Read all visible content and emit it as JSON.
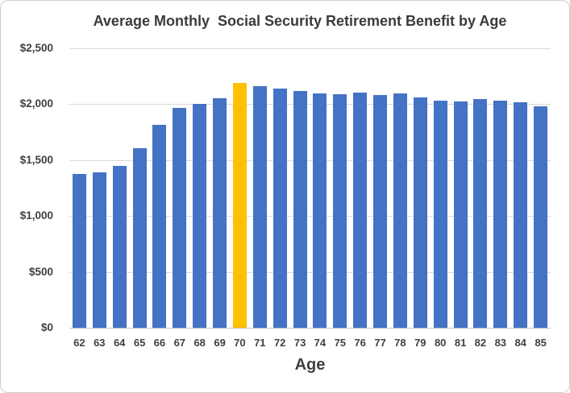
{
  "chart_data": {
    "type": "bar",
    "title": "Average Monthly  Social Security Retirement Benefit by Age",
    "xlabel": "Age",
    "ylabel": "",
    "categories": [
      "62",
      "63",
      "64",
      "65",
      "66",
      "67",
      "68",
      "69",
      "70",
      "71",
      "72",
      "73",
      "74",
      "75",
      "76",
      "77",
      "78",
      "79",
      "80",
      "81",
      "82",
      "83",
      "84",
      "85"
    ],
    "values": [
      1375,
      1390,
      1445,
      1610,
      1815,
      1965,
      2005,
      2055,
      2190,
      2160,
      2140,
      2120,
      2095,
      2090,
      2105,
      2080,
      2095,
      2060,
      2035,
      2025,
      2050,
      2030,
      2015,
      1980
    ],
    "highlight_category": "70",
    "ylim": [
      0,
      2500
    ],
    "ytick_interval": 500,
    "ytick_labels": [
      "$0",
      "$500",
      "$1,000",
      "$1,500",
      "$2,000",
      "$2,500"
    ],
    "grid": true,
    "legend_position": "none",
    "colors": {
      "bar": "#4472C4",
      "highlight_bar": "#FFC000",
      "gridline": "#D9D9D9",
      "axis_line": "#BFBFBF",
      "tick_label": "#404040",
      "title": "#3B3B3B",
      "axis_title": "#404040",
      "chart_border": "#D0CECE",
      "background": "#FFFFFF"
    }
  }
}
